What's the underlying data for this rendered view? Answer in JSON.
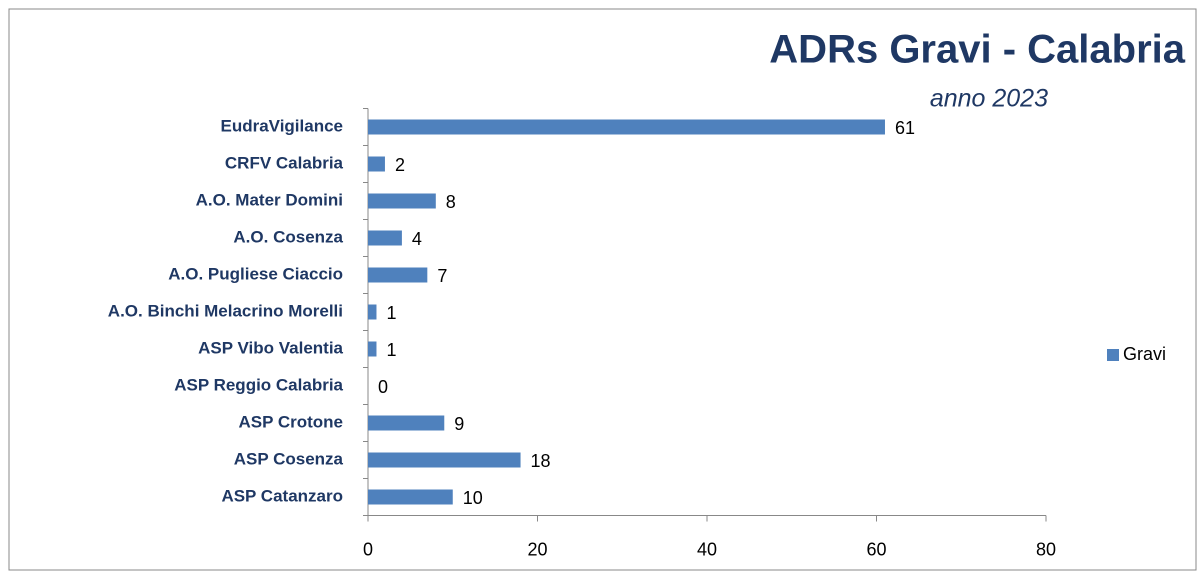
{
  "chart_data": {
    "type": "bar",
    "orientation": "horizontal",
    "title": "ADRs Gravi - Calabria",
    "subtitle": "anno 2023",
    "categories": [
      "EudraVigilance",
      "CRFV Calabria",
      "A.O. Mater Domini",
      "A.O. Cosenza",
      "A.O. Pugliese Ciaccio",
      "A.O. Binchi Melacrino Morelli",
      "ASP Vibo Valentia",
      "ASP Reggio Calabria",
      "ASP Crotone",
      "ASP Cosenza",
      "ASP Catanzaro"
    ],
    "series": [
      {
        "name": "Gravi",
        "color": "#4f81bd",
        "values": [
          61,
          2,
          8,
          4,
          7,
          1,
          1,
          0,
          9,
          18,
          10
        ]
      }
    ],
    "xlim": [
      0,
      80
    ],
    "xticks": [
      0,
      20,
      40,
      60,
      80
    ],
    "grid": false,
    "legend": "right"
  }
}
